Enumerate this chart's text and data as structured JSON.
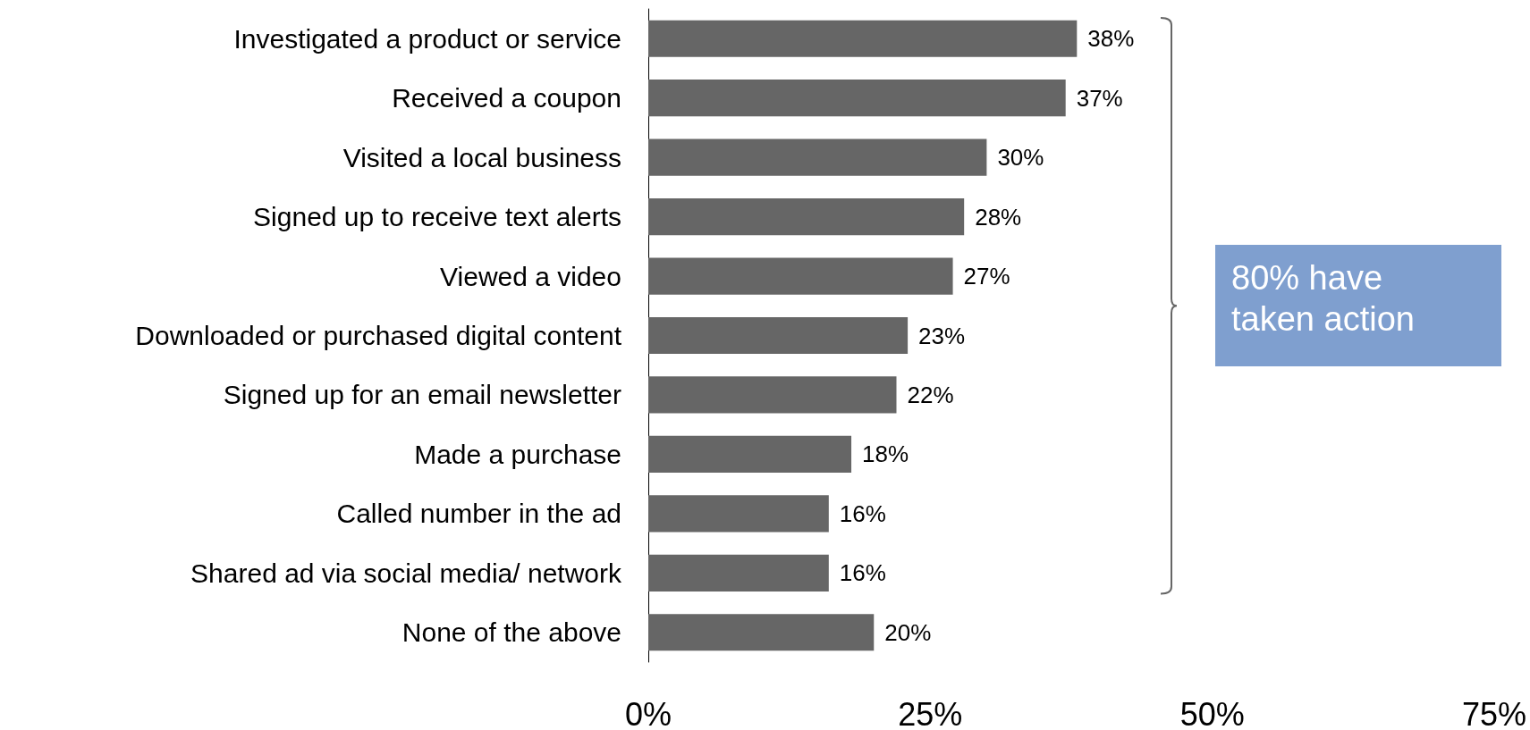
{
  "chart_data": {
    "type": "bar",
    "orientation": "horizontal",
    "categories": [
      "Investigated a product or service",
      "Received a coupon",
      "Visited a local business",
      "Signed up to receive text alerts",
      "Viewed a video",
      "Downloaded or purchased digital content",
      "Signed up for an email newsletter",
      "Made a purchase",
      "Called number in the ad",
      "Shared ad via social media/ network",
      "None of the above"
    ],
    "values": [
      38,
      37,
      30,
      28,
      27,
      23,
      22,
      18,
      16,
      16,
      20
    ],
    "value_labels": [
      "38%",
      "37%",
      "30%",
      "28%",
      "27%",
      "23%",
      "22%",
      "18%",
      "16%",
      "16%",
      "20%"
    ],
    "color": "#666666",
    "xlim": [
      0,
      75
    ],
    "xticks": [
      {
        "value": 0,
        "label": "0%"
      },
      {
        "value": 25,
        "label": "25%"
      },
      {
        "value": 50,
        "label": "50%"
      },
      {
        "value": 75,
        "label": "75%"
      }
    ],
    "grid": false,
    "annotations": [
      "80% have taken action"
    ]
  }
}
